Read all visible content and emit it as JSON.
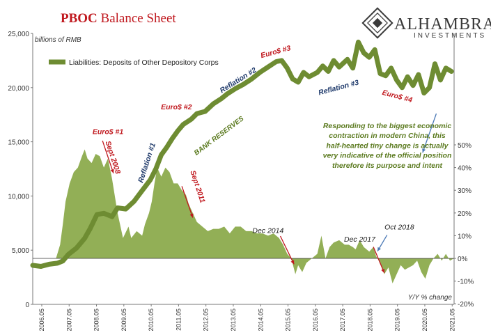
{
  "title": {
    "bold": "PBOC",
    "rest": " Balance Sheet"
  },
  "logo": {
    "name": "ALHAMBRA",
    "sub": "INVESTMENTS"
  },
  "chart_data": {
    "type": "line",
    "left_axis": {
      "unit": "billions of RMB",
      "min": 0,
      "max": 25000,
      "ticks": [
        "25,000",
        "20,000",
        "15,000",
        "10,000",
        "5,000",
        "0"
      ],
      "tick_values": [
        25000,
        20000,
        15000,
        10000,
        5000,
        0
      ]
    },
    "right_axis": {
      "unit": "Y/Y % change",
      "min": -20,
      "max": 50,
      "ticks": [
        "50%",
        "40%",
        "30%",
        "20%",
        "10%",
        "0%",
        "-10%",
        "-20%"
      ],
      "tick_values": [
        50,
        40,
        30,
        20,
        10,
        0,
        -10,
        -20
      ]
    },
    "x_axis": {
      "ticks": [
        "2006.05",
        "2007.05",
        "2008.05",
        "2009.05",
        "2010.05",
        "2011.05",
        "2012.05",
        "2013.05",
        "2014.05",
        "2015.05",
        "2016.05",
        "2017.05",
        "2018.05",
        "2019.05",
        "2020.05",
        "2021.05"
      ],
      "tick_values": [
        2006.33,
        2007.33,
        2008.33,
        2009.33,
        2010.33,
        2011.33,
        2012.33,
        2013.33,
        2014.33,
        2015.33,
        2016.33,
        2017.33,
        2018.33,
        2019.33,
        2020.33,
        2021.33
      ],
      "min": 2006.0,
      "max": 2021.4
    },
    "series": [
      {
        "name": "Liabilities: Deposits of Other Depository Corps",
        "axis": "left",
        "color": "#6e8c32",
        "points": [
          [
            2006.0,
            3600
          ],
          [
            2006.3,
            3500
          ],
          [
            2006.6,
            3700
          ],
          [
            2006.9,
            3800
          ],
          [
            2007.1,
            4000
          ],
          [
            2007.3,
            4600
          ],
          [
            2007.6,
            5200
          ],
          [
            2007.9,
            6100
          ],
          [
            2008.1,
            7000
          ],
          [
            2008.35,
            8300
          ],
          [
            2008.6,
            8400
          ],
          [
            2008.9,
            8100
          ],
          [
            2009.1,
            8900
          ],
          [
            2009.4,
            8800
          ],
          [
            2009.7,
            9500
          ],
          [
            2010.0,
            10500
          ],
          [
            2010.3,
            11500
          ],
          [
            2010.5,
            12500
          ],
          [
            2010.7,
            13800
          ],
          [
            2010.9,
            14500
          ],
          [
            2011.1,
            15300
          ],
          [
            2011.3,
            16000
          ],
          [
            2011.5,
            16600
          ],
          [
            2011.8,
            17100
          ],
          [
            2012.0,
            17600
          ],
          [
            2012.3,
            17800
          ],
          [
            2012.6,
            18500
          ],
          [
            2012.9,
            19000
          ],
          [
            2013.1,
            19400
          ],
          [
            2013.4,
            19900
          ],
          [
            2013.7,
            20300
          ],
          [
            2014.0,
            20800
          ],
          [
            2014.3,
            21400
          ],
          [
            2014.6,
            21900
          ],
          [
            2014.9,
            22400
          ],
          [
            2015.1,
            22500
          ],
          [
            2015.3,
            21800
          ],
          [
            2015.5,
            20800
          ],
          [
            2015.7,
            20500
          ],
          [
            2015.9,
            21400
          ],
          [
            2016.1,
            21000
          ],
          [
            2016.4,
            21400
          ],
          [
            2016.6,
            22000
          ],
          [
            2016.8,
            21500
          ],
          [
            2017.0,
            22500
          ],
          [
            2017.2,
            21900
          ],
          [
            2017.5,
            22600
          ],
          [
            2017.7,
            21800
          ],
          [
            2017.9,
            24200
          ],
          [
            2018.1,
            23200
          ],
          [
            2018.3,
            22800
          ],
          [
            2018.5,
            23500
          ],
          [
            2018.7,
            21300
          ],
          [
            2018.9,
            21100
          ],
          [
            2019.1,
            21800
          ],
          [
            2019.3,
            20700
          ],
          [
            2019.5,
            20000
          ],
          [
            2019.7,
            21000
          ],
          [
            2019.9,
            20200
          ],
          [
            2020.1,
            21200
          ],
          [
            2020.3,
            19500
          ],
          [
            2020.5,
            20000
          ],
          [
            2020.7,
            22200
          ],
          [
            2020.9,
            20700
          ],
          [
            2021.1,
            21800
          ],
          [
            2021.3,
            21500
          ]
        ]
      },
      {
        "name": "Y/Y % change",
        "axis": "right",
        "color": "#8cab4d",
        "kind": "area",
        "points": [
          [
            2006.0,
            0
          ],
          [
            2006.85,
            0
          ],
          [
            2007.0,
            6
          ],
          [
            2007.1,
            15
          ],
          [
            2007.2,
            25
          ],
          [
            2007.35,
            33
          ],
          [
            2007.5,
            38
          ],
          [
            2007.65,
            40
          ],
          [
            2007.8,
            45
          ],
          [
            2007.9,
            48
          ],
          [
            2008.0,
            44
          ],
          [
            2008.15,
            42
          ],
          [
            2008.3,
            46
          ],
          [
            2008.45,
            45
          ],
          [
            2008.6,
            40
          ],
          [
            2008.75,
            44
          ],
          [
            2008.9,
            35
          ],
          [
            2009.1,
            20
          ],
          [
            2009.3,
            9
          ],
          [
            2009.5,
            14
          ],
          [
            2009.6,
            9
          ],
          [
            2009.8,
            12
          ],
          [
            2010.0,
            10
          ],
          [
            2010.1,
            15
          ],
          [
            2010.25,
            20
          ],
          [
            2010.35,
            25
          ],
          [
            2010.45,
            33
          ],
          [
            2010.55,
            40
          ],
          [
            2010.7,
            36
          ],
          [
            2010.85,
            40
          ],
          [
            2011.0,
            38
          ],
          [
            2011.15,
            33
          ],
          [
            2011.3,
            33
          ],
          [
            2011.45,
            30
          ],
          [
            2011.6,
            28
          ],
          [
            2011.7,
            24
          ],
          [
            2011.85,
            20
          ],
          [
            2012.0,
            16
          ],
          [
            2012.2,
            14
          ],
          [
            2012.4,
            12
          ],
          [
            2012.6,
            13
          ],
          [
            2012.8,
            13
          ],
          [
            2013.0,
            14
          ],
          [
            2013.2,
            11
          ],
          [
            2013.4,
            14
          ],
          [
            2013.6,
            14
          ],
          [
            2013.8,
            12
          ],
          [
            2014.0,
            12
          ],
          [
            2014.2,
            11
          ],
          [
            2014.4,
            11
          ],
          [
            2014.6,
            10
          ],
          [
            2014.8,
            11
          ],
          [
            2015.0,
            9
          ],
          [
            2015.15,
            6
          ],
          [
            2015.3,
            2
          ],
          [
            2015.45,
            0
          ],
          [
            2015.6,
            -7
          ],
          [
            2015.7,
            -3
          ],
          [
            2015.85,
            -6
          ],
          [
            2016.0,
            -2
          ],
          [
            2016.2,
            0
          ],
          [
            2016.4,
            2
          ],
          [
            2016.55,
            10
          ],
          [
            2016.7,
            0
          ],
          [
            2016.85,
            5
          ],
          [
            2017.0,
            7
          ],
          [
            2017.2,
            8
          ],
          [
            2017.4,
            6
          ],
          [
            2017.55,
            6
          ],
          [
            2017.7,
            5
          ],
          [
            2017.8,
            4
          ],
          [
            2017.95,
            8
          ],
          [
            2018.1,
            5
          ],
          [
            2018.3,
            3
          ],
          [
            2018.45,
            5
          ],
          [
            2018.55,
            1
          ],
          [
            2018.7,
            -2
          ],
          [
            2018.85,
            -7
          ],
          [
            2019.0,
            -4
          ],
          [
            2019.15,
            -11
          ],
          [
            2019.3,
            -7
          ],
          [
            2019.45,
            -3
          ],
          [
            2019.6,
            -5
          ],
          [
            2019.75,
            -4
          ],
          [
            2019.9,
            -3
          ],
          [
            2020.05,
            -1
          ],
          [
            2020.2,
            -6
          ],
          [
            2020.35,
            -9
          ],
          [
            2020.5,
            -3
          ],
          [
            2020.65,
            0
          ],
          [
            2020.8,
            2
          ],
          [
            2020.95,
            -1
          ],
          [
            2021.1,
            2
          ],
          [
            2021.25,
            -1
          ],
          [
            2021.4,
            0
          ]
        ]
      }
    ],
    "annotations": [
      {
        "text": "Euro$ #1",
        "color": "red",
        "x": 2008.75,
        "y": 15700,
        "rotate": 0
      },
      {
        "text": "Sept 2008",
        "color": "red",
        "x": 2008.85,
        "y": 13500,
        "rotate": 72
      },
      {
        "text": "Euro$ #2",
        "color": "red",
        "x": 2011.25,
        "y": 18000,
        "rotate": 0
      },
      {
        "text": "Sept 2011",
        "color": "red",
        "x": 2011.95,
        "y": 10800,
        "rotate": 72
      },
      {
        "text": "Euro$ #3",
        "color": "red",
        "x": 2014.9,
        "y": 23100,
        "rotate": -15
      },
      {
        "text": "Euro$ #4",
        "color": "red",
        "x": 2019.3,
        "y": 19000,
        "rotate": 15
      },
      {
        "text": "Dec 2014",
        "color": "dark",
        "x": 2014.6,
        "y": 6600,
        "rotate": 0
      },
      {
        "text": "Dec 2017",
        "color": "dark",
        "x": 2017.95,
        "y": 5800,
        "rotate": 0
      },
      {
        "text": "Oct 2018",
        "color": "dark",
        "x": 2019.4,
        "y": 6900,
        "rotate": 0
      },
      {
        "text": "Reflation #1",
        "color": "blue",
        "x": 2010.25,
        "y": 13000,
        "rotate": -72
      },
      {
        "text": "Reflation #2",
        "color": "blue",
        "x": 2013.55,
        "y": 20500,
        "rotate": -32
      },
      {
        "text": "Reflation #3",
        "color": "blue",
        "x": 2017.2,
        "y": 19800,
        "rotate": -15
      },
      {
        "text": "BANK RESERVES",
        "color": "green",
        "x": 2012.85,
        "y": 15400,
        "rotate": -37
      }
    ],
    "note": [
      "Responding to the biggest economic",
      "contraction in modern China, this",
      "half-hearted tiny change is actually",
      "very indicative of the official position",
      "therefore its purpose and intent"
    ]
  }
}
